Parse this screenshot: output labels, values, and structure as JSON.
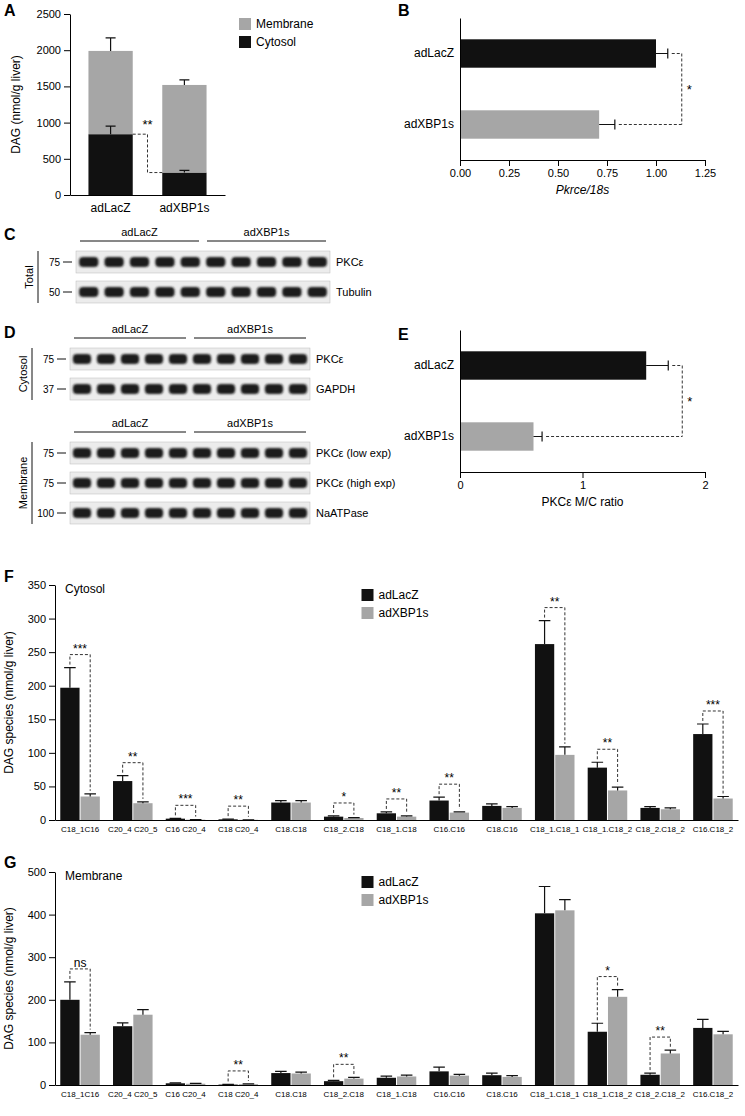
{
  "chart_data": [
    {
      "panel": "A",
      "type": "bar",
      "stacked": true,
      "ylabel": "DAG (nmol/g liver)",
      "categories": [
        "adLacZ",
        "adXBP1s"
      ],
      "series": [
        {
          "name": "Cytosol",
          "color": "#111111",
          "values": [
            840,
            310
          ],
          "errors": [
            110,
            30
          ]
        },
        {
          "name": "Membrane",
          "color": "#a6a6a6",
          "values": [
            1150,
            1210
          ],
          "errors": [
            180,
            70
          ]
        }
      ],
      "ylim": [
        0,
        2500
      ],
      "yticks": [
        0,
        500,
        1000,
        1500,
        2000,
        2500
      ],
      "legend": "upper right",
      "annotations": [
        {
          "text": "**"
        }
      ]
    },
    {
      "panel": "B",
      "type": "bar",
      "orientation": "horizontal",
      "xlabel": "Pkrce/18s",
      "categories": [
        "adLacZ",
        "adXBP1s"
      ],
      "values": [
        1.0,
        0.71
      ],
      "errors": [
        0.06,
        0.08
      ],
      "colors": [
        "#111111",
        "#a6a6a6"
      ],
      "xlim": [
        0,
        1.25
      ],
      "xticks": [
        {
          "value": 0,
          "label": "0.00"
        },
        {
          "value": 0.25,
          "label": "0.25"
        },
        {
          "value": 0.5,
          "label": "0.50"
        },
        {
          "value": 0.75,
          "label": "0.75"
        },
        {
          "value": 1,
          "label": "1.00"
        },
        {
          "value": 1.25,
          "label": "1.25"
        }
      ],
      "annotations": [
        {
          "text": "*"
        }
      ]
    },
    {
      "panel": "C",
      "type": "blot",
      "groups": [
        "adLacZ",
        "adXBP1s"
      ],
      "lanes": 5,
      "sections": [
        {
          "name": "Total",
          "rows": [
            {
              "label": "PKCε",
              "mw": 75
            },
            {
              "label": "Tubulin",
              "mw": 50
            }
          ]
        }
      ]
    },
    {
      "panel": "D",
      "type": "blot",
      "groups": [
        "adLacZ",
        "adXBP1s"
      ],
      "lanes": 5,
      "sections": [
        {
          "name": "Cytosol",
          "rows": [
            {
              "label": "PKCε",
              "mw": 75
            },
            {
              "label": "GAPDH",
              "mw": 37
            }
          ]
        },
        {
          "name": "Membrane",
          "rows": [
            {
              "label": "PKCε (low exp)",
              "mw": 75
            },
            {
              "label": "PKCε (high exp)",
              "mw": 75
            },
            {
              "label": "NaATPase",
              "mw": 100
            }
          ]
        }
      ]
    },
    {
      "panel": "E",
      "type": "bar",
      "orientation": "horizontal",
      "xlabel": "PKCε M/C ratio",
      "categories": [
        "adLacZ",
        "adXBP1s"
      ],
      "values": [
        1.52,
        0.6
      ],
      "errors": [
        0.18,
        0.07
      ],
      "colors": [
        "#111111",
        "#a6a6a6"
      ],
      "xlim": [
        0,
        2
      ],
      "xticks": [
        0,
        1,
        2
      ],
      "annotations": [
        {
          "text": "*"
        }
      ]
    },
    {
      "panel": "F",
      "type": "bar",
      "title": "Cytosol",
      "ylabel": "DAG species (nmol/g liver)",
      "categories": [
        "C18_1C16",
        "C20_4 C20_5",
        "C16 C20_4",
        "C18 C20_4",
        "C18.C18",
        "C18_2.C18",
        "C18_1.C18",
        "C16.C16",
        "C18.C16",
        "C18_1.C18_1",
        "C18_1.C18_2",
        "C18_2.C18_2",
        "C16.C18_2"
      ],
      "series": [
        {
          "name": "adLacZ",
          "color": "#111111",
          "values": [
            197,
            58,
            2,
            1,
            26,
            5,
            10,
            29,
            21,
            262,
            78,
            18,
            128
          ],
          "errors": [
            30,
            8,
            0.5,
            0.3,
            3,
            1,
            2,
            5,
            3,
            35,
            8,
            2,
            15
          ]
        },
        {
          "name": "adXBP1s",
          "color": "#a6a6a6",
          "values": [
            35,
            25,
            0.5,
            0.3,
            26,
            3,
            5,
            11,
            18,
            97,
            44,
            16,
            32
          ],
          "errors": [
            4,
            2,
            0.1,
            0.1,
            3,
            0.5,
            1,
            1,
            2,
            12,
            5,
            2,
            3
          ]
        }
      ],
      "ylim": [
        0,
        350
      ],
      "yticks": [
        0,
        50,
        100,
        150,
        200,
        250,
        300,
        350
      ],
      "legend": "upper center",
      "annotations": [
        {
          "category": "C18_1C16",
          "text": "***"
        },
        {
          "category": "C20_4 C20_5",
          "text": "**"
        },
        {
          "category": "C16 C20_4",
          "text": "***"
        },
        {
          "category": "C18 C20_4",
          "text": "**"
        },
        {
          "category": "C18_2.C18",
          "text": "*"
        },
        {
          "category": "C18_1.C18",
          "text": "**"
        },
        {
          "category": "C16.C16",
          "text": "**"
        },
        {
          "category": "C18_1.C18_1",
          "text": "**"
        },
        {
          "category": "C18_1.C18_2",
          "text": "**"
        },
        {
          "category": "C16.C18_2",
          "text": "***"
        }
      ]
    },
    {
      "panel": "G",
      "type": "bar",
      "title": "Membrane",
      "ylabel": "DAG species (nmol/g liver)",
      "categories": [
        "C18_1C16",
        "C20_4 C20_5",
        "C16 C20_4",
        "C18 C20_4",
        "C18.C18",
        "C18_2.C18",
        "C18_1.C18",
        "C16.C16",
        "C18.C16",
        "C18_1.C18_1",
        "C18_1.C18_2",
        "C18_2.C18_2",
        "C16.C18_2"
      ],
      "series": [
        {
          "name": "adLacZ",
          "color": "#111111",
          "values": [
            200,
            138,
            4,
            1,
            28,
            9,
            17,
            32,
            23,
            403,
            125,
            24,
            134
          ],
          "errors": [
            42,
            8,
            1,
            0.3,
            4,
            2,
            4,
            10,
            5,
            63,
            20,
            4,
            20
          ]
        },
        {
          "name": "adXBP1s",
          "color": "#a6a6a6",
          "values": [
            118,
            165,
            3,
            2,
            27,
            15,
            20,
            22,
            19,
            410,
            207,
            74,
            119
          ],
          "errors": [
            5,
            12,
            1,
            0.5,
            3,
            3,
            3,
            3,
            3,
            25,
            17,
            8,
            7
          ]
        }
      ],
      "ylim": [
        0,
        500
      ],
      "yticks": [
        0,
        100,
        200,
        300,
        400,
        500
      ],
      "legend": "upper center",
      "annotations": [
        {
          "category": "C18_1C16",
          "text": "ns"
        },
        {
          "category": "C18 C20_4",
          "text": "**"
        },
        {
          "category": "C18_2.C18",
          "text": "**"
        },
        {
          "category": "C18_1.C18_2",
          "text": "*"
        },
        {
          "category": "C18_2.C18_2",
          "text": "**"
        }
      ]
    }
  ]
}
